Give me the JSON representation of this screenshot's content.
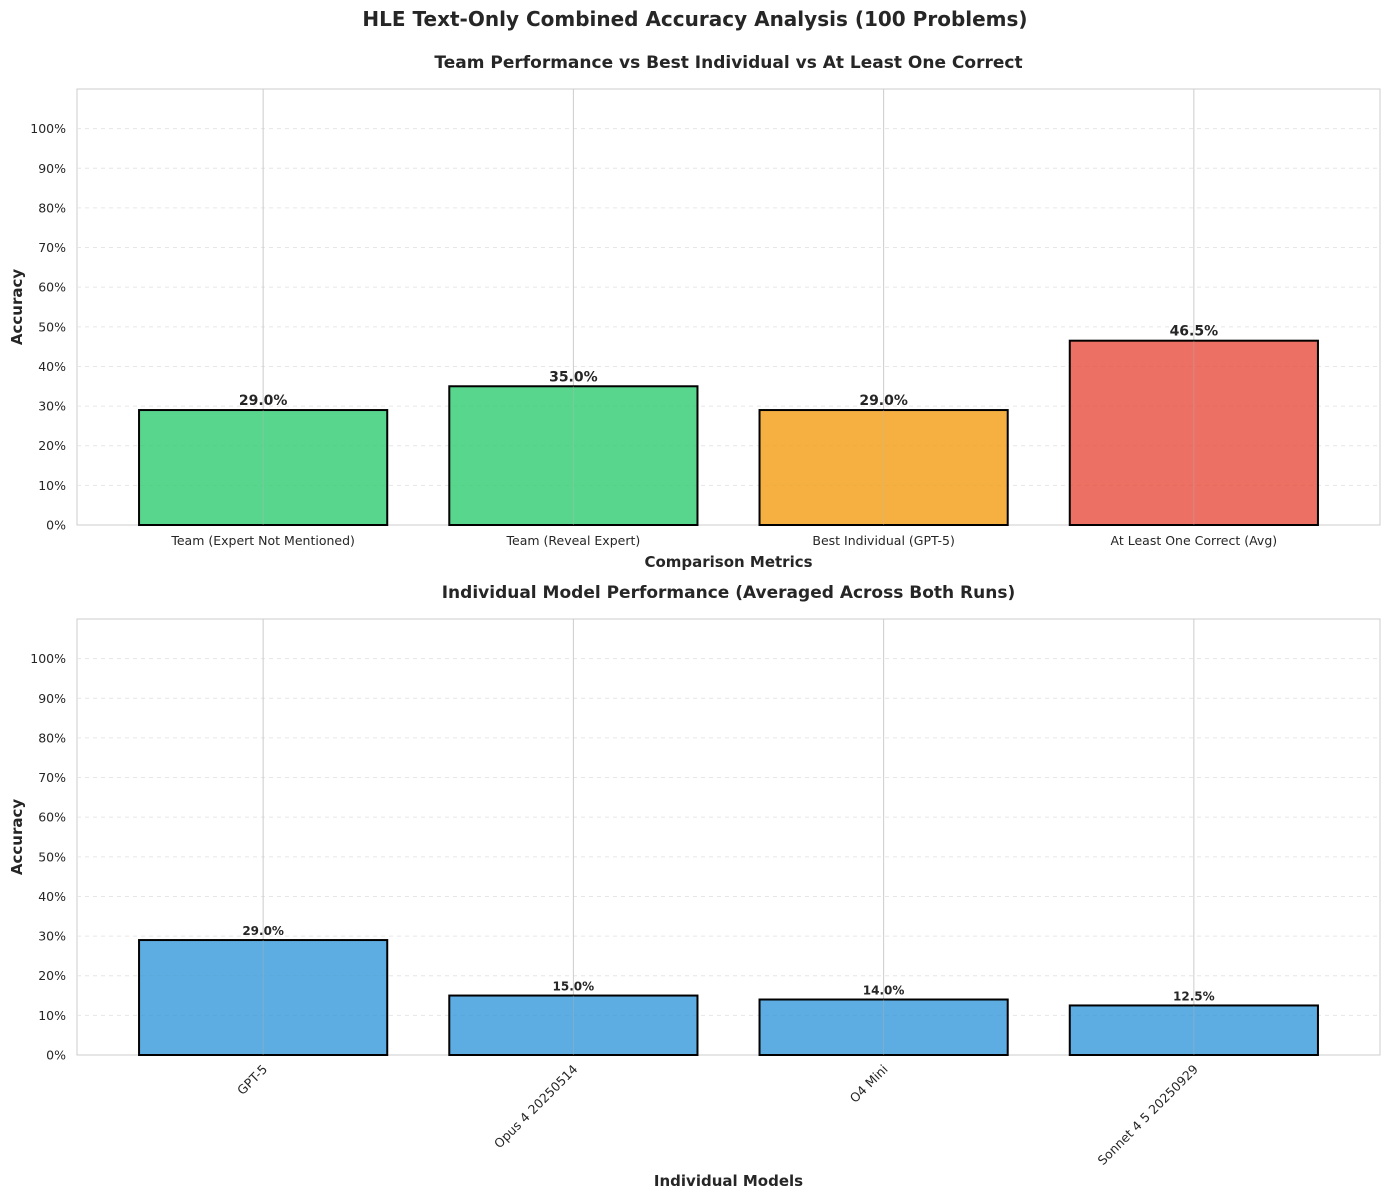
{
  "figure": {
    "suptitle": "HLE Text-Only Combined Accuracy Analysis (100 Problems)"
  },
  "chart_data": [
    {
      "type": "bar",
      "title": "Team Performance vs Best Individual vs At Least One Correct",
      "xlabel": "Comparison Metrics",
      "ylabel": "Accuracy",
      "categories": [
        "Team (Expert Not Mentioned)",
        "Team (Reveal Expert)",
        "Best Individual (GPT-5)",
        "At Least One Correct (Avg)"
      ],
      "values": [
        29.0,
        35.0,
        29.0,
        46.5
      ],
      "value_labels": [
        "29.0%",
        "35.0%",
        "29.0%",
        "46.5%"
      ],
      "colors": [
        "#2ecc71",
        "#2ecc71",
        "#f39c12",
        "#e74c3c"
      ],
      "ylim": [
        0,
        110
      ],
      "yticks": [
        0,
        10,
        20,
        30,
        40,
        50,
        60,
        70,
        80,
        90,
        100
      ],
      "ytick_labels": [
        "0%",
        "10%",
        "20%",
        "30%",
        "40%",
        "50%",
        "60%",
        "70%",
        "80%",
        "90%",
        "100%"
      ],
      "grid": true,
      "xtick_rotation": 0
    },
    {
      "type": "bar",
      "title": "Individual Model Performance (Averaged Across Both Runs)",
      "xlabel": "Individual Models",
      "ylabel": "Accuracy",
      "categories": [
        "GPT-5",
        "Opus 4 20250514",
        "O4 Mini",
        "Sonnet 4 5 20250929"
      ],
      "values": [
        29.0,
        15.0,
        14.0,
        12.5
      ],
      "value_labels": [
        "29.0%",
        "15.0%",
        "14.0%",
        "12.5%"
      ],
      "colors": [
        "#3498db",
        "#3498db",
        "#3498db",
        "#3498db"
      ],
      "ylim": [
        0,
        110
      ],
      "yticks": [
        0,
        10,
        20,
        30,
        40,
        50,
        60,
        70,
        80,
        90,
        100
      ],
      "ytick_labels": [
        "0%",
        "10%",
        "20%",
        "30%",
        "40%",
        "50%",
        "60%",
        "70%",
        "80%",
        "90%",
        "100%"
      ],
      "grid": true,
      "xtick_rotation": -45
    }
  ]
}
